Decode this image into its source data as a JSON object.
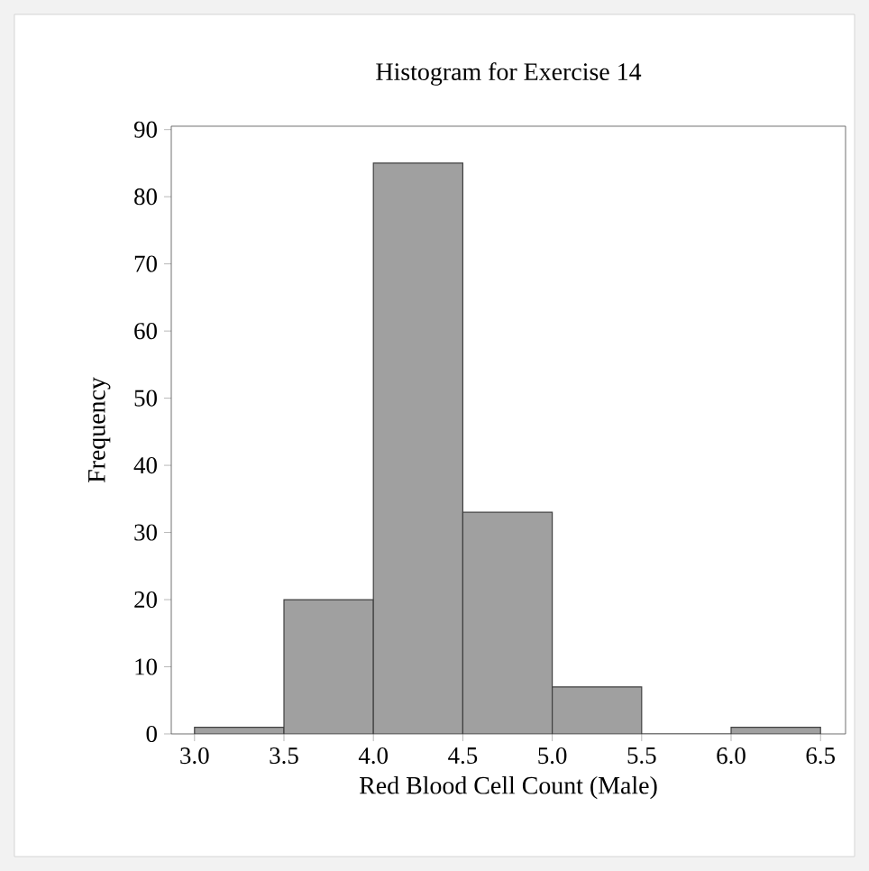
{
  "chart_data": {
    "type": "histogram",
    "title": "Histogram for Exercise 14",
    "xlabel": "Red Blood Cell Count (Male)",
    "ylabel": "Frequency",
    "bins": [
      3.0,
      3.5,
      4.0,
      4.5,
      5.0,
      5.5,
      6.0,
      6.5
    ],
    "values": [
      1,
      20,
      85,
      33,
      7,
      0,
      1
    ],
    "color": "#a0a0a0",
    "xlim": [
      2.87,
      6.64
    ],
    "ylim": [
      0,
      90.5
    ],
    "xticks": [
      {
        "value": 3,
        "label": "3.0"
      },
      {
        "value": 3.5,
        "label": "3.5"
      },
      {
        "value": 4,
        "label": "4.0"
      },
      {
        "value": 4.5,
        "label": "4.5"
      },
      {
        "value": 5,
        "label": "5.0"
      },
      {
        "value": 5.5,
        "label": "5.5"
      },
      {
        "value": 6,
        "label": "6.0"
      },
      {
        "value": 6.5,
        "label": "6.5"
      }
    ],
    "yticks": [
      0,
      10,
      20,
      30,
      40,
      50,
      60,
      70,
      80,
      90
    ],
    "grid": false
  }
}
